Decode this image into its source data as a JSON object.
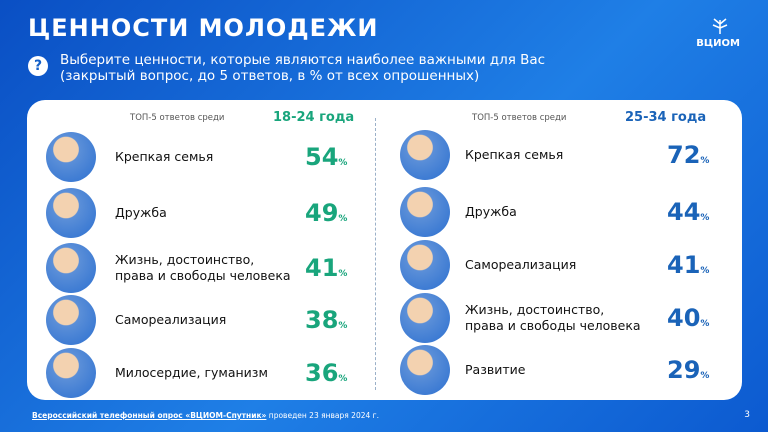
{
  "header": {
    "title": "ЦЕННОСТИ МОЛОДЕЖИ",
    "logo": "ВЦИОМ"
  },
  "question": {
    "icon": "?",
    "lines": [
      "Выберите ценности, которые являются наиболее важными для Вас",
      "(закрытый вопрос, до 5 ответов, в % от всех опрошенных)"
    ]
  },
  "groups": [
    {
      "caption": "ТОП-5 ответов среди",
      "age": "18-24 года",
      "color": "#19a57c",
      "unit": "%",
      "items": [
        {
          "label": "Крепкая семья",
          "value": 54
        },
        {
          "label": "Дружба",
          "value": 49
        },
        {
          "label": "Жизнь, достоинство,\nправа и свободы человека",
          "value": 41
        },
        {
          "label": "Самореализация",
          "value": 38
        },
        {
          "label": "Милосердие, гуманизм",
          "value": 36
        }
      ]
    },
    {
      "caption": "ТОП-5 ответов среди",
      "age": "25-34 года",
      "color": "#1a63b8",
      "unit": "%",
      "items": [
        {
          "label": "Крепкая семья",
          "value": 72
        },
        {
          "label": "Дружба",
          "value": 44
        },
        {
          "label": "Самореализация",
          "value": 41
        },
        {
          "label": "Жизнь, достоинство,\nправа и свободы человека",
          "value": 40
        },
        {
          "label": "Развитие",
          "value": 29
        }
      ]
    }
  ],
  "footer": {
    "source_link": "Всероссийский телефонный опрос «ВЦИОМ-Спутник»",
    "source_rest": "проведен 23 января 2024 г.",
    "page": "3"
  }
}
